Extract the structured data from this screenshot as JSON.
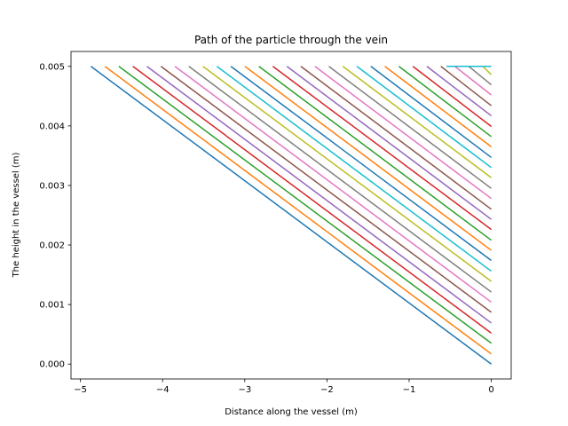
{
  "chart_data": {
    "type": "line",
    "title": "Path of the particle through the vein",
    "xlabel": "Distance along the vessel (m)",
    "ylabel": "The height in the vessel (m)",
    "xlim": [
      -5.115,
      0.242
    ],
    "ylim": [
      -0.00025,
      0.00525
    ],
    "x_ticks": [
      -5,
      -4,
      -3,
      -2,
      -1,
      0
    ],
    "x_tick_labels": [
      "−5",
      "−4",
      "−3",
      "−2",
      "−1",
      "0"
    ],
    "y_ticks": [
      0.0,
      0.001,
      0.002,
      0.003,
      0.004,
      0.005
    ],
    "y_tick_labels": [
      "0.000",
      "0.001",
      "0.002",
      "0.003",
      "0.004",
      "0.005"
    ],
    "grid": false,
    "legend": "none",
    "colors": [
      "#1f77b4",
      "#ff7f0e",
      "#2ca02c",
      "#d62728",
      "#9467bd",
      "#8c564b",
      "#e377c2",
      "#7f7f7f",
      "#bcbd22",
      "#17becf"
    ],
    "series": [
      {
        "x": [
          -4.873,
          0
        ],
        "y": [
          0.005,
          0.0
        ]
      },
      {
        "x": [
          -4.703,
          0
        ],
        "y": [
          0.005,
          0.00017
        ]
      },
      {
        "x": [
          -4.533,
          0
        ],
        "y": [
          0.005,
          0.00035
        ]
      },
      {
        "x": [
          -4.362,
          0
        ],
        "y": [
          0.005,
          0.00052
        ]
      },
      {
        "x": [
          -4.192,
          0
        ],
        "y": [
          0.005,
          0.00069
        ]
      },
      {
        "x": [
          -4.021,
          0
        ],
        "y": [
          0.005,
          0.00087
        ]
      },
      {
        "x": [
          -3.851,
          0
        ],
        "y": [
          0.005,
          0.00104
        ]
      },
      {
        "x": [
          -3.681,
          0
        ],
        "y": [
          0.005,
          0.00121
        ]
      },
      {
        "x": [
          -3.51,
          0
        ],
        "y": [
          0.005,
          0.00139
        ]
      },
      {
        "x": [
          -3.34,
          0
        ],
        "y": [
          0.005,
          0.00156
        ]
      },
      {
        "x": [
          -3.17,
          0
        ],
        "y": [
          0.005,
          0.00174
        ]
      },
      {
        "x": [
          -2.999,
          0
        ],
        "y": [
          0.005,
          0.00191
        ]
      },
      {
        "x": [
          -2.829,
          0
        ],
        "y": [
          0.005,
          0.00208
        ]
      },
      {
        "x": [
          -2.659,
          0
        ],
        "y": [
          0.005,
          0.00226
        ]
      },
      {
        "x": [
          -2.488,
          0
        ],
        "y": [
          0.005,
          0.00243
        ]
      },
      {
        "x": [
          -2.318,
          0
        ],
        "y": [
          0.005,
          0.0026
        ]
      },
      {
        "x": [
          -2.147,
          0
        ],
        "y": [
          0.005,
          0.00278
        ]
      },
      {
        "x": [
          -1.977,
          0
        ],
        "y": [
          0.005,
          0.00295
        ]
      },
      {
        "x": [
          -1.807,
          0
        ],
        "y": [
          0.005,
          0.00313
        ]
      },
      {
        "x": [
          -1.636,
          0
        ],
        "y": [
          0.005,
          0.0033
        ]
      },
      {
        "x": [
          -1.466,
          0
        ],
        "y": [
          0.005,
          0.00347
        ]
      },
      {
        "x": [
          -1.296,
          0
        ],
        "y": [
          0.005,
          0.00365
        ]
      },
      {
        "x": [
          -1.125,
          0
        ],
        "y": [
          0.005,
          0.00382
        ]
      },
      {
        "x": [
          -0.955,
          0
        ],
        "y": [
          0.005,
          0.00399
        ]
      },
      {
        "x": [
          -0.785,
          0
        ],
        "y": [
          0.005,
          0.00417
        ]
      },
      {
        "x": [
          -0.614,
          0
        ],
        "y": [
          0.005,
          0.00434
        ]
      },
      {
        "x": [
          -0.444,
          0
        ],
        "y": [
          0.005,
          0.00452
        ]
      },
      {
        "x": [
          -0.274,
          0
        ],
        "y": [
          0.005,
          0.00469
        ]
      },
      {
        "x": [
          -0.103,
          0
        ],
        "y": [
          0.005,
          0.00486
        ]
      },
      {
        "x": [
          -0.545,
          0
        ],
        "y": [
          0.005,
          0.005
        ]
      }
    ]
  }
}
